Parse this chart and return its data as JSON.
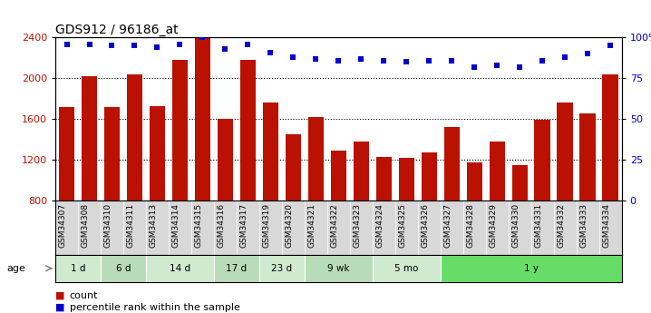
{
  "title": "GDS912 / 96186_at",
  "samples": [
    "GSM34307",
    "GSM34308",
    "GSM34310",
    "GSM34311",
    "GSM34313",
    "GSM34314",
    "GSM34315",
    "GSM34316",
    "GSM34317",
    "GSM34319",
    "GSM34320",
    "GSM34321",
    "GSM34322",
    "GSM34323",
    "GSM34324",
    "GSM34325",
    "GSM34326",
    "GSM34327",
    "GSM34328",
    "GSM34329",
    "GSM34330",
    "GSM34331",
    "GSM34332",
    "GSM34333",
    "GSM34334"
  ],
  "counts": [
    1720,
    2020,
    1720,
    2040,
    1730,
    2180,
    2400,
    1600,
    2180,
    1760,
    1450,
    1620,
    1290,
    1380,
    1230,
    1220,
    1270,
    1520,
    1170,
    1380,
    1150,
    1590,
    1760,
    1650,
    2040
  ],
  "percentiles": [
    96,
    96,
    95,
    95,
    94,
    96,
    100,
    93,
    96,
    91,
    88,
    87,
    86,
    87,
    86,
    85,
    86,
    86,
    82,
    83,
    82,
    86,
    88,
    90,
    95
  ],
  "groups": [
    {
      "label": "1 d",
      "start": 0,
      "end": 2,
      "color": "#d0ead0"
    },
    {
      "label": "6 d",
      "start": 2,
      "end": 4,
      "color": "#b8dcb8"
    },
    {
      "label": "14 d",
      "start": 4,
      "end": 7,
      "color": "#d0ead0"
    },
    {
      "label": "17 d",
      "start": 7,
      "end": 9,
      "color": "#b8dcb8"
    },
    {
      "label": "23 d",
      "start": 9,
      "end": 11,
      "color": "#d0ead0"
    },
    {
      "label": "9 wk",
      "start": 11,
      "end": 14,
      "color": "#b8dcb8"
    },
    {
      "label": "5 mo",
      "start": 14,
      "end": 17,
      "color": "#d0ead0"
    },
    {
      "label": "1 y",
      "start": 17,
      "end": 25,
      "color": "#66dd66"
    }
  ],
  "ylim_left": [
    800,
    2400
  ],
  "ylim_right": [
    0,
    100
  ],
  "yticks_left": [
    800,
    1200,
    1600,
    2000,
    2400
  ],
  "yticks_right": [
    0,
    25,
    50,
    75,
    100
  ],
  "bar_color": "#bb1100",
  "dot_color": "#0000cc",
  "xtick_bg": "#d8d8d8",
  "age_bar_bg": "#c8c8c8",
  "plot_bg": "#ffffff",
  "legend_count": "count",
  "legend_percentile": "percentile rank within the sample"
}
